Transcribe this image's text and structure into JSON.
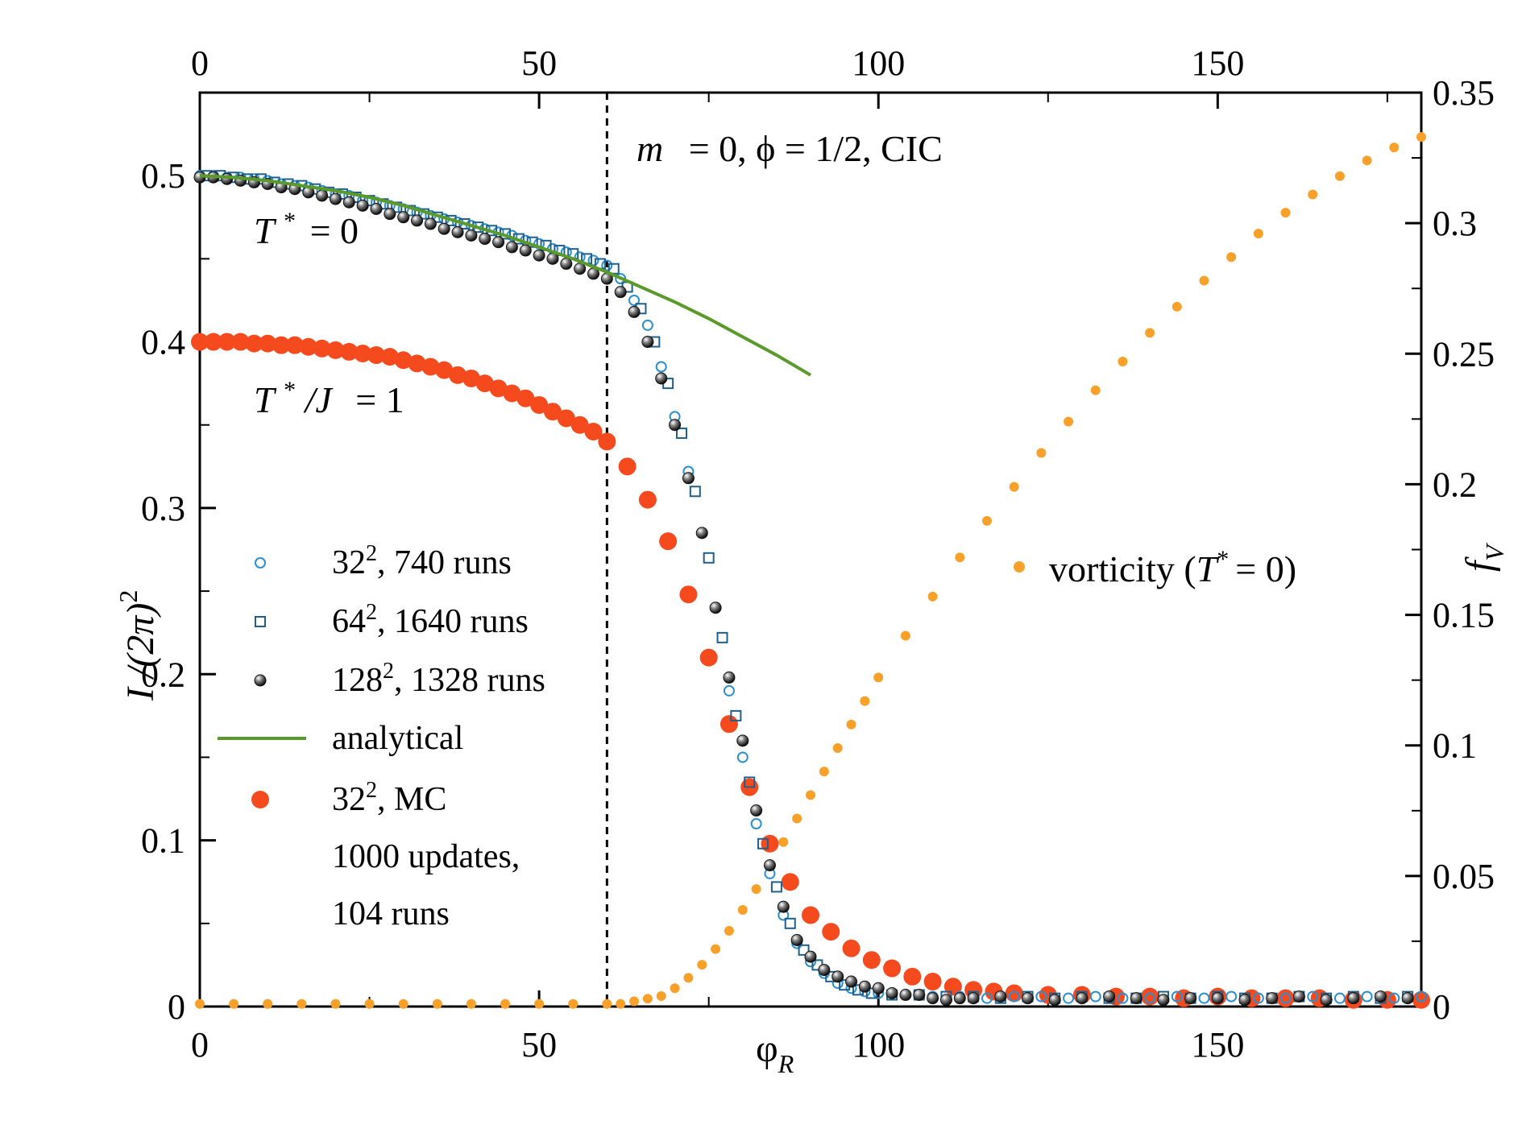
{
  "chart_data": {
    "type": "scatter",
    "annotation_title": {
      "m": "m",
      "rest": "= 0,  ϕ = 1/2, CIC"
    },
    "label_T0": {
      "T": "T",
      "sup": "*",
      "rest": "= 0"
    },
    "label_T1": {
      "T": "T",
      "sup": "*",
      "J": "/J",
      "rest": "= 1"
    },
    "xaxis": {
      "label": "φ",
      "label_sub": "R",
      "range": [
        0,
        180
      ],
      "ticks": [
        0,
        50,
        100,
        150
      ],
      "tick_labels": [
        "0",
        "50",
        "100",
        "150"
      ]
    },
    "yaxis_left": {
      "label": "I /(2π)",
      "label_sup": "2",
      "range": [
        0,
        0.55
      ],
      "ticks": [
        0,
        0.1,
        0.2,
        0.3,
        0.4,
        0.5
      ],
      "tick_labels": [
        "0",
        "0.1",
        "0.2",
        "0.3",
        "0.4",
        "0.5"
      ]
    },
    "yaxis_right": {
      "label": "f",
      "label_sub": "V",
      "range": [
        0,
        0.35
      ],
      "ticks": [
        0,
        0.05,
        0.1,
        0.15,
        0.2,
        0.25,
        0.3,
        0.35
      ],
      "tick_labels": [
        "0",
        "0.05",
        "0.1",
        "0.15",
        "0.2",
        "0.25",
        "0.3",
        "0.35"
      ]
    },
    "vline": {
      "x": 60,
      "style": "dashed"
    },
    "legend": [
      {
        "key": "s32",
        "pre": "32",
        "sup": "2",
        "post": ", 740 runs"
      },
      {
        "key": "s64",
        "pre": "64",
        "sup": "2",
        "post": ", 1640 runs"
      },
      {
        "key": "s128",
        "pre": "128",
        "sup": "2",
        "post": ", 1328 runs"
      },
      {
        "key": "analytical",
        "pre": "analytical",
        "sup": "",
        "post": ""
      },
      {
        "key": "mc",
        "pre": "32",
        "sup": "2",
        "post": ", MC"
      },
      {
        "key": "mc_note1",
        "pre": "1000 updates,",
        "sup": "",
        "post": ""
      },
      {
        "key": "mc_note2",
        "pre": "104 runs",
        "sup": "",
        "post": ""
      }
    ],
    "vorticity_label": {
      "pre": "vorticity (",
      "T": "T",
      "sup": "*",
      "post": "= 0)"
    },
    "colors": {
      "s32": "#2a8fd0",
      "s64": "#1f5f8b",
      "s128": "#111111",
      "analytical": "#5a9a2a",
      "mc": "#f5491e",
      "vorticity": "#f7a12a"
    },
    "series": [
      {
        "name": "32^2, 740 runs",
        "axis": "left",
        "marker": "open-circle",
        "x": [
          0,
          2,
          4,
          6,
          8,
          10,
          12,
          14,
          16,
          18,
          20,
          22,
          24,
          26,
          28,
          30,
          32,
          34,
          36,
          38,
          40,
          42,
          44,
          46,
          48,
          50,
          52,
          54,
          56,
          58,
          60,
          62,
          64,
          66,
          68,
          70,
          72,
          74,
          76,
          78,
          80,
          82,
          84,
          86,
          88,
          90,
          92,
          94,
          96,
          98,
          100,
          104,
          108,
          112,
          116,
          120,
          124,
          128,
          132,
          136,
          140,
          144,
          148,
          152,
          156,
          160,
          164,
          168,
          172,
          176,
          180
        ],
        "y": [
          0.5,
          0.5,
          0.499,
          0.499,
          0.498,
          0.497,
          0.495,
          0.494,
          0.493,
          0.491,
          0.489,
          0.488,
          0.485,
          0.484,
          0.482,
          0.48,
          0.478,
          0.476,
          0.474,
          0.472,
          0.47,
          0.468,
          0.466,
          0.464,
          0.461,
          0.459,
          0.456,
          0.454,
          0.451,
          0.449,
          0.446,
          0.438,
          0.425,
          0.41,
          0.385,
          0.355,
          0.322,
          0.285,
          0.24,
          0.19,
          0.15,
          0.11,
          0.08,
          0.055,
          0.038,
          0.027,
          0.02,
          0.014,
          0.011,
          0.009,
          0.008,
          0.007,
          0.006,
          0.006,
          0.005,
          0.006,
          0.006,
          0.005,
          0.006,
          0.005,
          0.005,
          0.006,
          0.005,
          0.006,
          0.005,
          0.005,
          0.006,
          0.005,
          0.006,
          0.005,
          0.006
        ]
      },
      {
        "name": "64^2, 1640 runs",
        "axis": "left",
        "marker": "open-square",
        "x": [
          1,
          3,
          5,
          7,
          9,
          11,
          13,
          15,
          17,
          19,
          21,
          23,
          25,
          27,
          29,
          31,
          33,
          35,
          37,
          39,
          41,
          43,
          45,
          47,
          49,
          51,
          53,
          55,
          57,
          59,
          61,
          63,
          65,
          67,
          69,
          71,
          73,
          75,
          77,
          79,
          81,
          83,
          85,
          87,
          89,
          91,
          93,
          95,
          97,
          99,
          102,
          106,
          110,
          114,
          118,
          122,
          126,
          130,
          134,
          138,
          142,
          146,
          150,
          154,
          158,
          162,
          166,
          170,
          174,
          178
        ],
        "y": [
          0.5,
          0.5,
          0.499,
          0.498,
          0.498,
          0.496,
          0.495,
          0.494,
          0.492,
          0.49,
          0.489,
          0.487,
          0.485,
          0.483,
          0.481,
          0.479,
          0.477,
          0.475,
          0.473,
          0.471,
          0.469,
          0.467,
          0.465,
          0.462,
          0.46,
          0.458,
          0.455,
          0.453,
          0.45,
          0.447,
          0.444,
          0.433,
          0.42,
          0.4,
          0.375,
          0.345,
          0.31,
          0.27,
          0.222,
          0.175,
          0.135,
          0.098,
          0.072,
          0.05,
          0.034,
          0.025,
          0.018,
          0.013,
          0.01,
          0.008,
          0.007,
          0.007,
          0.006,
          0.006,
          0.005,
          0.006,
          0.005,
          0.006,
          0.005,
          0.005,
          0.006,
          0.005,
          0.006,
          0.005,
          0.005,
          0.006,
          0.005,
          0.006,
          0.005,
          0.006
        ]
      },
      {
        "name": "128^2, 1328 runs",
        "axis": "left",
        "marker": "shaded-sphere",
        "x": [
          0,
          2,
          4,
          6,
          8,
          10,
          12,
          14,
          16,
          18,
          20,
          22,
          24,
          26,
          28,
          30,
          32,
          34,
          36,
          38,
          40,
          42,
          44,
          46,
          48,
          50,
          52,
          54,
          56,
          58,
          60,
          62,
          64,
          66,
          68,
          70,
          72,
          74,
          76,
          78,
          80,
          82,
          84,
          86,
          88,
          90,
          92,
          94,
          96,
          98,
          100,
          102,
          104,
          106,
          108,
          110,
          112,
          114,
          118,
          122,
          126,
          130,
          134,
          138,
          142,
          146,
          150,
          154,
          158,
          162,
          166,
          170,
          174,
          178
        ],
        "y": [
          0.499,
          0.499,
          0.498,
          0.497,
          0.496,
          0.495,
          0.493,
          0.492,
          0.49,
          0.488,
          0.486,
          0.484,
          0.482,
          0.48,
          0.477,
          0.475,
          0.473,
          0.471,
          0.468,
          0.466,
          0.464,
          0.462,
          0.46,
          0.457,
          0.455,
          0.452,
          0.45,
          0.447,
          0.444,
          0.441,
          0.438,
          0.43,
          0.418,
          0.4,
          0.378,
          0.35,
          0.318,
          0.285,
          0.24,
          0.198,
          0.16,
          0.118,
          0.085,
          0.06,
          0.04,
          0.03,
          0.022,
          0.018,
          0.015,
          0.012,
          0.011,
          0.008,
          0.007,
          0.007,
          0.005,
          0.004,
          0.005,
          0.005,
          0.006,
          0.005,
          0.004,
          0.005,
          0.006,
          0.005,
          0.004,
          0.005,
          0.005,
          0.004,
          0.005,
          0.006,
          0.004,
          0.005,
          0.006,
          0.005
        ]
      },
      {
        "name": "analytical",
        "axis": "left",
        "marker": "line",
        "x": [
          0,
          5,
          10,
          15,
          20,
          25,
          30,
          35,
          40,
          45,
          50,
          55,
          60,
          65,
          70,
          75,
          80,
          85,
          90
        ],
        "y": [
          0.5,
          0.499,
          0.497,
          0.494,
          0.491,
          0.487,
          0.482,
          0.476,
          0.47,
          0.464,
          0.457,
          0.45,
          0.442,
          0.433,
          0.424,
          0.414,
          0.403,
          0.392,
          0.38
        ]
      },
      {
        "name": "32^2, MC",
        "axis": "left",
        "marker": "filled-circle-large",
        "x": [
          0,
          2,
          4,
          6,
          8,
          10,
          12,
          14,
          16,
          18,
          20,
          22,
          24,
          26,
          28,
          30,
          32,
          34,
          36,
          38,
          40,
          42,
          44,
          46,
          48,
          50,
          52,
          54,
          56,
          58,
          60,
          63,
          66,
          69,
          72,
          75,
          78,
          81,
          84,
          87,
          90,
          93,
          96,
          99,
          102,
          105,
          108,
          111,
          114,
          117,
          120,
          125,
          130,
          135,
          140,
          145,
          150,
          155,
          160,
          165,
          170,
          175,
          180
        ],
        "y": [
          0.4,
          0.4,
          0.4,
          0.4,
          0.399,
          0.399,
          0.398,
          0.398,
          0.397,
          0.396,
          0.395,
          0.394,
          0.393,
          0.392,
          0.391,
          0.389,
          0.387,
          0.385,
          0.383,
          0.38,
          0.378,
          0.375,
          0.372,
          0.369,
          0.366,
          0.362,
          0.358,
          0.354,
          0.35,
          0.346,
          0.34,
          0.325,
          0.305,
          0.28,
          0.248,
          0.21,
          0.17,
          0.132,
          0.098,
          0.075,
          0.055,
          0.045,
          0.035,
          0.028,
          0.023,
          0.018,
          0.015,
          0.012,
          0.01,
          0.009,
          0.008,
          0.007,
          0.007,
          0.006,
          0.006,
          0.005,
          0.006,
          0.005,
          0.005,
          0.005,
          0.004,
          0.004,
          0.004
        ]
      },
      {
        "name": "vorticity (T*=0)",
        "axis": "right",
        "marker": "small-dot",
        "x": [
          0,
          5,
          10,
          15,
          20,
          25,
          30,
          35,
          40,
          45,
          50,
          55,
          60,
          62,
          64,
          66,
          68,
          70,
          72,
          74,
          76,
          78,
          80,
          82,
          84,
          86,
          88,
          90,
          92,
          94,
          96,
          98,
          100,
          104,
          108,
          112,
          116,
          120,
          124,
          128,
          132,
          136,
          140,
          144,
          148,
          152,
          156,
          160,
          164,
          168,
          172,
          176,
          180
        ],
        "y": [
          0.001,
          0.001,
          0.001,
          0.001,
          0.001,
          0.001,
          0.001,
          0.001,
          0.001,
          0.001,
          0.001,
          0.001,
          0.001,
          0.001,
          0.002,
          0.003,
          0.004,
          0.007,
          0.011,
          0.016,
          0.022,
          0.029,
          0.037,
          0.045,
          0.054,
          0.063,
          0.072,
          0.081,
          0.09,
          0.099,
          0.108,
          0.117,
          0.126,
          0.142,
          0.157,
          0.172,
          0.186,
          0.199,
          0.212,
          0.224,
          0.236,
          0.247,
          0.258,
          0.268,
          0.278,
          0.287,
          0.296,
          0.304,
          0.311,
          0.318,
          0.324,
          0.329,
          0.333
        ]
      }
    ]
  }
}
